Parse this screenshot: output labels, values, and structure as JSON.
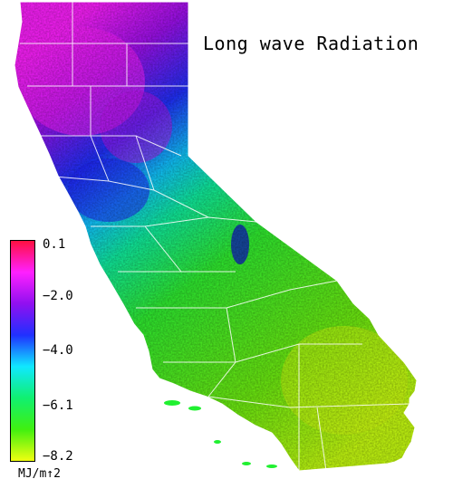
{
  "map": {
    "title": "Long wave Radiation",
    "region": "California"
  },
  "legend": {
    "unit": "MJ/m↑2",
    "ticks": [
      "0.1",
      "−2.0",
      "−4.0",
      "−6.1",
      "−8.2"
    ],
    "colors": [
      "#ff1040",
      "#ff20ff",
      "#9010f0",
      "#2030ff",
      "#10e8ff",
      "#10f070",
      "#40f010",
      "#f0ff10"
    ]
  }
}
